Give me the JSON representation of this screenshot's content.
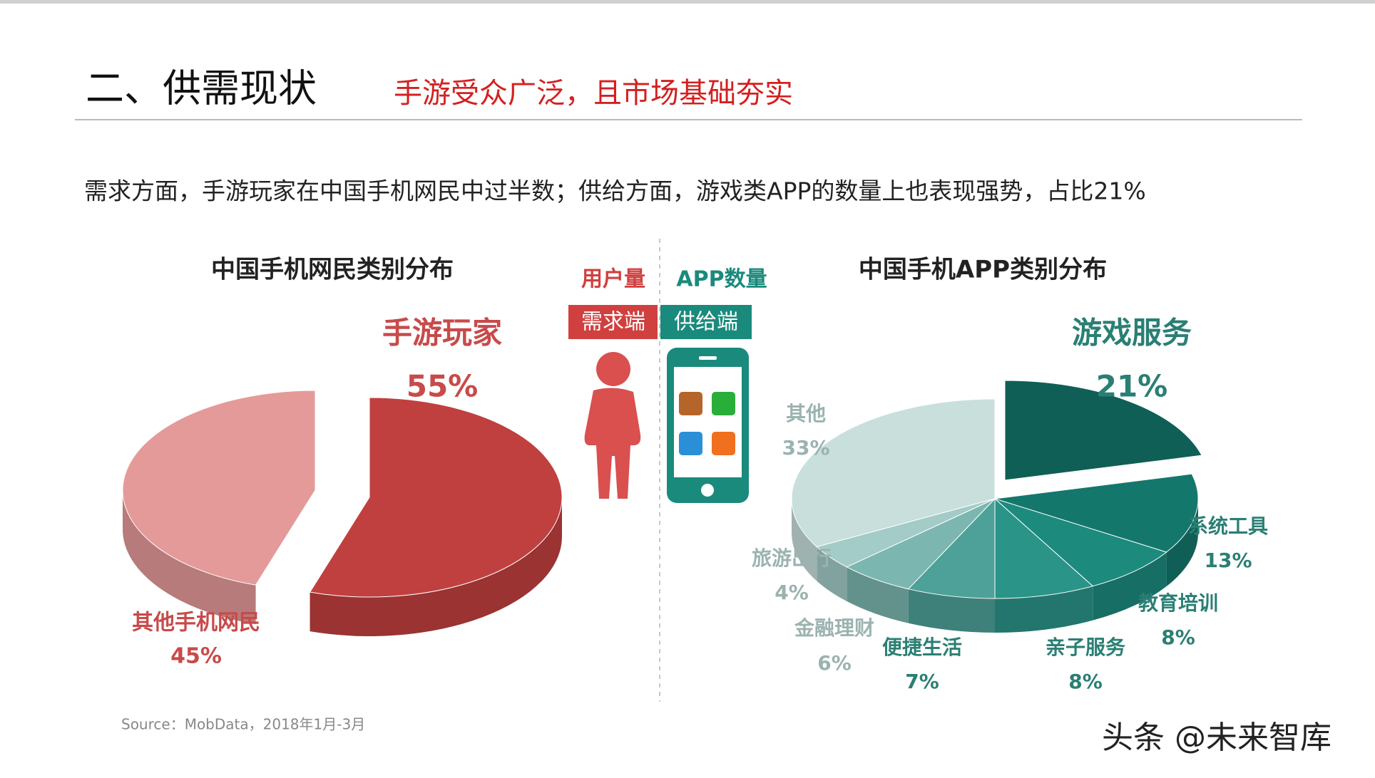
{
  "header": {
    "title": "二、供需现状",
    "subtitle": "手游受众广泛，且市场基础夯实"
  },
  "description": "需求方面，手游玩家在中国手机网民中过半数；供给方面，游戏类APP的数量上也表现强势，占比21%",
  "center_panel": {
    "left_label": "用户量",
    "right_label": "APP数量",
    "left_tag": "需求端",
    "right_tag": "供给端"
  },
  "source": "Source：MobData，2018年1月-3月",
  "watermark": "头条 @未来智库",
  "chart_data": [
    {
      "type": "pie",
      "title": "中国手机网民类别分布",
      "categories": [
        "手游玩家",
        "其他手机网民"
      ],
      "values": [
        55,
        45
      ],
      "value_labels": [
        "55%",
        "45%"
      ],
      "colors": [
        "#c0403f",
        "#e49a99"
      ]
    },
    {
      "type": "pie",
      "title": "中国手机APP类别分布",
      "categories": [
        "游戏服务",
        "系统工具",
        "教育培训",
        "亲子服务",
        "便捷生活",
        "金融理财",
        "旅游出行",
        "其他"
      ],
      "values": [
        21,
        13,
        8,
        8,
        7,
        6,
        4,
        33
      ],
      "value_labels": [
        "21%",
        "13%",
        "8%",
        "8%",
        "7%",
        "6%",
        "4%",
        "33%"
      ],
      "colors": [
        "#0f5f56",
        "#14776c",
        "#1c8a7d",
        "#2a9488",
        "#4da198",
        "#7cb6b0",
        "#a3cbc7",
        "#c8dfdc"
      ]
    }
  ]
}
